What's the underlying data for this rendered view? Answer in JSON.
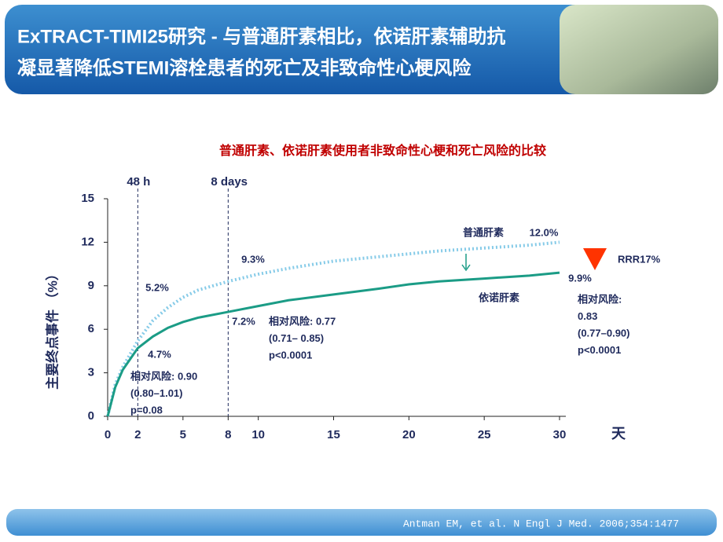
{
  "header": {
    "title_lines": [
      "ExTRACT-TIMI25研究 - 与普通肝素相比，依诺肝素辅助抗",
      "凝显著降低STEMI溶栓患者的死亡及非致命性心梗风险"
    ]
  },
  "chart_data": {
    "type": "line",
    "title": "普通肝素、依诺肝素使用者非致命性心梗和死亡风险的比较",
    "y_label": "主要终点事件 （%）",
    "x_label": "天",
    "x": [
      0,
      0.5,
      1,
      2,
      3,
      4,
      5,
      6,
      8,
      10,
      12,
      15,
      18,
      20,
      22,
      25,
      28,
      30
    ],
    "series": [
      {
        "name": "普通肝素",
        "color": "#86cbe8",
        "style": "dotted",
        "values": [
          0,
          2.2,
          3.4,
          5.2,
          6.6,
          7.5,
          8.2,
          8.7,
          9.3,
          9.8,
          10.2,
          10.7,
          11.0,
          11.2,
          11.4,
          11.6,
          11.8,
          12.0
        ],
        "value_labels": [
          null,
          null,
          null,
          "5.2%",
          null,
          null,
          null,
          null,
          "9.3%",
          null,
          null,
          null,
          null,
          null,
          null,
          null,
          null,
          "12.0%"
        ]
      },
      {
        "name": "依诺肝素",
        "color": "#1b9c86",
        "style": "solid",
        "values": [
          0,
          2.0,
          3.2,
          4.7,
          5.5,
          6.1,
          6.5,
          6.8,
          7.2,
          7.6,
          8.0,
          8.4,
          8.8,
          9.1,
          9.3,
          9.5,
          9.7,
          9.9
        ],
        "value_labels": [
          null,
          null,
          null,
          "4.7%",
          null,
          null,
          null,
          null,
          "7.2%",
          null,
          null,
          null,
          null,
          null,
          null,
          null,
          null,
          "9.9%"
        ]
      }
    ],
    "xlim": [
      0,
      30
    ],
    "xticks": [
      0,
      2,
      5,
      8,
      10,
      15,
      20,
      25,
      30
    ],
    "ylim": [
      0,
      15
    ],
    "yticks": [
      0,
      3,
      6,
      9,
      12,
      15
    ],
    "vlines": [
      {
        "value": 2,
        "label": "48 h"
      },
      {
        "value": 8,
        "label": "8 days"
      }
    ],
    "annotations": [
      {
        "lines": [
          "相对风险: 0.90",
          "(0.80–1.01)",
          "p=0.08"
        ]
      },
      {
        "lines": [
          "相对风险: 0.77",
          "(0.71– 0.85)",
          "p<0.0001"
        ]
      },
      {
        "lines": [
          "相对风险:",
          "0.83",
          "(0.77–0.90)",
          "p<0.0001"
        ]
      },
      {
        "lines": [
          "RRR17%"
        ]
      }
    ]
  },
  "footer": {
    "citation": "Antman EM, et al. N Engl J Med. 2006;354:1477"
  }
}
